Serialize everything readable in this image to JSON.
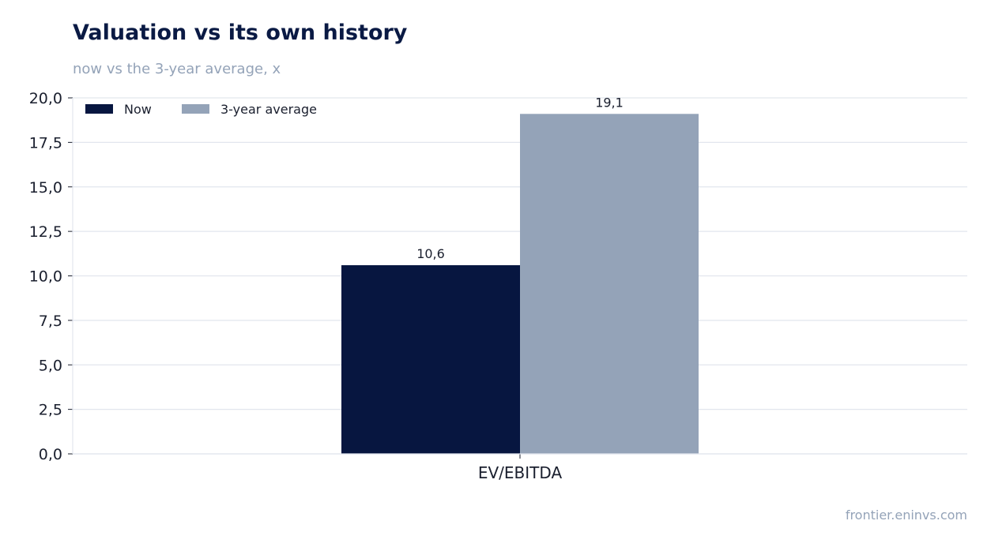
{
  "header": {
    "title": "Valuation vs its own history",
    "subtitle": "now vs the 3-year average, x"
  },
  "footer": {
    "source": "frontier.eninvs.com"
  },
  "chart_data": {
    "type": "bar",
    "categories": [
      "EV/EBITDA"
    ],
    "series": [
      {
        "name": "Now",
        "values": [
          10.6
        ],
        "color": "#071640"
      },
      {
        "name": "3-year average",
        "values": [
          19.1
        ],
        "color": "#94a3b8"
      }
    ],
    "data_labels": [
      "10,6",
      "19,1"
    ],
    "y_ticks": [
      "0,0",
      "2,5",
      "5,0",
      "7,5",
      "10,0",
      "12,5",
      "15,0",
      "17,5",
      "20,0"
    ],
    "ylim": [
      0,
      20
    ],
    "grid": true,
    "legend_position": "top-left"
  }
}
